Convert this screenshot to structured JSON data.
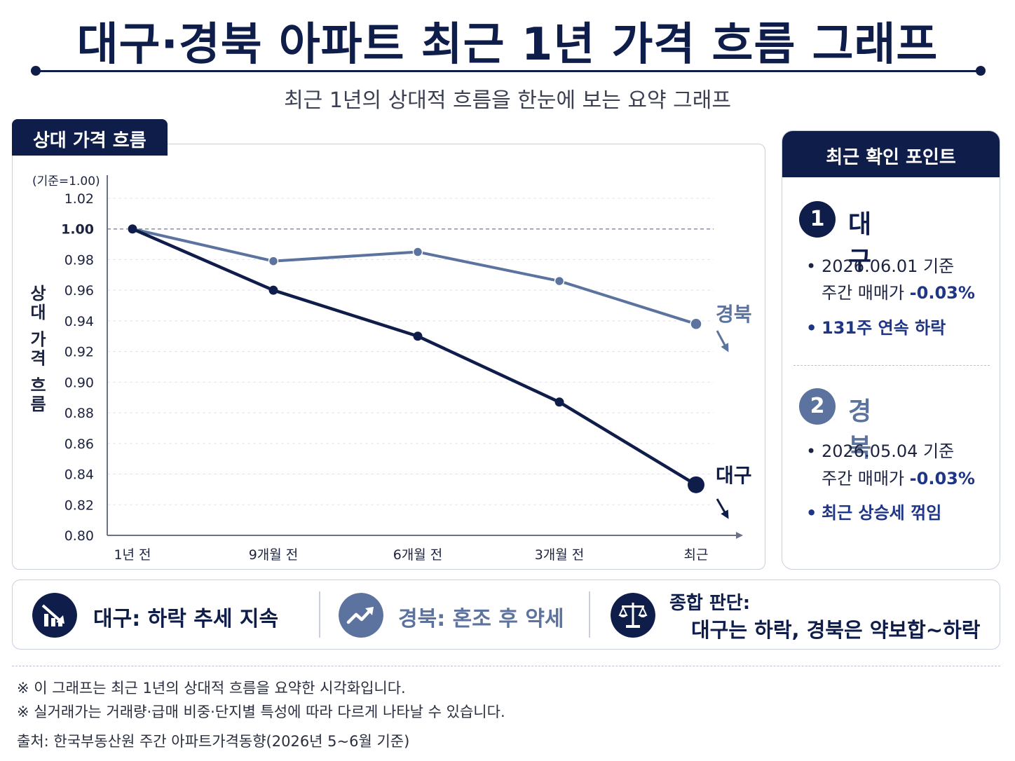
{
  "header": {
    "title": "대구·경북 아파트 최근 1년 가격 흐름 그래프",
    "subtitle": "최근 1년의 상대적 흐름을 한눈에 보는 요약 그래프"
  },
  "chart_panel": {
    "tab_label": "상대 가격 흐름"
  },
  "chart_data": {
    "type": "line",
    "title": "상대 가격 흐름",
    "ylabel": "상대 가격 흐름",
    "y_unit_note": "(기준=1.00)",
    "categories": [
      "1년 전",
      "9개월 전",
      "6개월 전",
      "3개월 전",
      "최근"
    ],
    "ylim": [
      0.8,
      1.02
    ],
    "yticks": [
      "0.80",
      "0.82",
      "0.84",
      "0.86",
      "0.88",
      "0.90",
      "0.92",
      "0.94",
      "0.96",
      "0.98",
      "1.00",
      "1.02"
    ],
    "baseline": 1.0,
    "grid": true,
    "series": [
      {
        "name": "대구",
        "values": [
          1.0,
          0.96,
          0.93,
          0.887,
          0.833
        ],
        "color": "#0f1d4a"
      },
      {
        "name": "경북",
        "values": [
          1.0,
          0.979,
          0.985,
          0.966,
          0.938
        ],
        "color": "#5b739e"
      }
    ]
  },
  "side_card": {
    "title": "최근 확인 포인트",
    "points": [
      {
        "number": "1",
        "name": "대구",
        "date_line": "2026.06.01 기준",
        "change_prefix": "주간 매매가 ",
        "change_value": "-0.03%",
        "highlight": "131주 연속 하락"
      },
      {
        "number": "2",
        "name": "경북",
        "date_line": "2026.05.04 기준",
        "change_prefix": "주간 매매가 ",
        "change_value": "-0.03%",
        "highlight": "최근 상승세 꺾임"
      }
    ]
  },
  "summary": {
    "item1": {
      "text": "대구: 하락 추세 지속",
      "icon": "chart-down-icon"
    },
    "item2": {
      "text": "경북: 혼조 후 약세",
      "icon": "trend-line-icon"
    },
    "item3": {
      "label": "종합 판단:",
      "text": "대구는 하락, 경북은 약보합~하락",
      "icon": "balance-scale-icon"
    }
  },
  "notes": [
    "※  이 그래프는 최근 1년의 상대적 흐름을 요약한 시각화입니다.",
    "※  실거래가는 거래량·급매 비중·단지별 특성에 따라 다르게 나타날 수 있습니다.",
    "출처:  한국부동산원 주간 아파트가격동향(2026년 5~6월 기준)"
  ],
  "colors": {
    "navy": "#0f1d4a",
    "steel": "#5b739e",
    "accent_text": "#1f3585"
  }
}
